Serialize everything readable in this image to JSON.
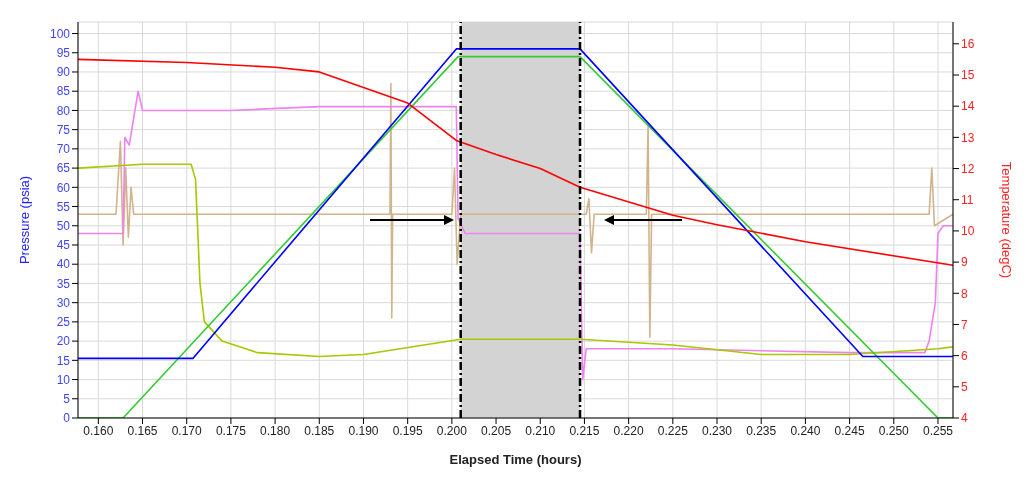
{
  "chart_data": {
    "type": "line",
    "xlabel": "Elapsed Time (hours)",
    "ylabel": "Pressure (psia)",
    "y2label": "Temperature (degC)",
    "xlim": [
      0.1577,
      0.2567
    ],
    "xticks": [
      {
        "value": 0.16,
        "label": "0.160"
      },
      0.165,
      {
        "value": 0.17,
        "label": "0.170"
      },
      0.175,
      {
        "value": 0.18,
        "label": "0.180"
      },
      0.185,
      {
        "value": 0.19,
        "label": "0.190"
      },
      0.195,
      {
        "value": 0.2,
        "label": "0.200"
      },
      0.205,
      {
        "value": 0.21,
        "label": "0.210"
      },
      0.215,
      {
        "value": 0.22,
        "label": "0.220"
      },
      0.225,
      {
        "value": 0.23,
        "label": "0.230"
      },
      0.235,
      {
        "value": 0.24,
        "label": "0.240"
      },
      0.245,
      {
        "value": 0.25,
        "label": "0.250"
      },
      0.255
    ],
    "ylim": [
      0,
      103
    ],
    "yticks": [
      0,
      5,
      10,
      15,
      20,
      25,
      30,
      35,
      40,
      45,
      50,
      55,
      60,
      65,
      70,
      75,
      80,
      85,
      90,
      95,
      100
    ],
    "y2lim": [
      4,
      16.7
    ],
    "y2ticks": [
      4,
      5,
      6,
      7,
      8,
      9,
      10,
      11,
      12,
      13,
      14,
      15,
      16
    ],
    "grid": true,
    "legend": false,
    "marker": "none",
    "line_style": "solid",
    "bands": [
      {
        "axis": "x",
        "from": 0.201,
        "to": 0.2145,
        "color": "#d3d3d3"
      }
    ],
    "ref_lines": [
      {
        "axis": "x",
        "value": 0.201,
        "color": "#000000",
        "line_style": "dashed"
      },
      {
        "axis": "x",
        "value": 0.2145,
        "color": "#000000",
        "line_style": "dashed"
      }
    ],
    "series": [
      {
        "color": "#d2b48c",
        "x": [
          0.1577,
          0.162,
          0.1625,
          0.1628,
          0.1631,
          0.1634,
          0.1637,
          0.164,
          0.165,
          0.193,
          0.1931,
          0.1932,
          0.1933,
          0.2,
          0.2003,
          0.2006,
          0.201,
          0.2152,
          0.2155,
          0.2158,
          0.2161,
          0.222,
          0.2222,
          0.2224,
          0.2226,
          0.254,
          0.2543,
          0.2546,
          0.2567
        ],
        "values": [
          53,
          53,
          72,
          45,
          65,
          47,
          60,
          53,
          53,
          53,
          87,
          26,
          53,
          53,
          65,
          40,
          53,
          53,
          57,
          43,
          53,
          53,
          76,
          21,
          53,
          53,
          65,
          50,
          53
        ]
      },
      {
        "color": "#ee82ee",
        "x": [
          0.1577,
          0.1628,
          0.163,
          0.1635,
          0.164,
          0.1645,
          0.165,
          0.175,
          0.185,
          0.195,
          0.2005,
          0.2007,
          0.2015,
          0.2145,
          0.2148,
          0.2152,
          0.225,
          0.245,
          0.2535,
          0.254,
          0.2547,
          0.255,
          0.2556,
          0.2567
        ],
        "values": [
          48,
          48,
          73,
          71,
          78,
          85,
          80,
          80,
          81,
          81,
          81,
          52,
          48,
          48,
          10,
          18,
          18,
          17,
          17,
          20,
          30,
          48,
          50,
          50
        ]
      },
      {
        "color": "#a8c800",
        "x": [
          0.1577,
          0.165,
          0.1705,
          0.171,
          0.1715,
          0.172,
          0.174,
          0.178,
          0.185,
          0.19,
          0.201,
          0.2145,
          0.225,
          0.235,
          0.245,
          0.255,
          0.2567
        ],
        "values": [
          65,
          66,
          66,
          62,
          35,
          25,
          20,
          17,
          16,
          16.5,
          20.5,
          20.5,
          19,
          16.5,
          16.5,
          18,
          18.5
        ]
      },
      {
        "color": "#33cc33",
        "x": [
          0.1577,
          0.1628,
          0.2007,
          0.2145,
          0.255,
          0.2567
        ],
        "values": [
          0,
          0,
          94,
          94,
          0,
          0
        ]
      },
      {
        "color": "#0000ff",
        "x": [
          0.1577,
          0.1707,
          0.2005,
          0.2145,
          0.2465,
          0.2567
        ],
        "values": [
          15.5,
          15.5,
          96,
          96,
          16,
          16
        ]
      },
      {
        "color": "#ff0000",
        "axis": "y2",
        "x": [
          0.1577,
          0.17,
          0.18,
          0.185,
          0.19,
          0.195,
          0.2005,
          0.205,
          0.21,
          0.2145,
          0.225,
          0.23,
          0.24,
          0.2567
        ],
        "values": [
          15.5,
          15.4,
          15.25,
          15.1,
          14.6,
          14.1,
          12.9,
          12.45,
          12.0,
          11.4,
          10.5,
          10.2,
          9.65,
          8.9
        ]
      }
    ]
  }
}
